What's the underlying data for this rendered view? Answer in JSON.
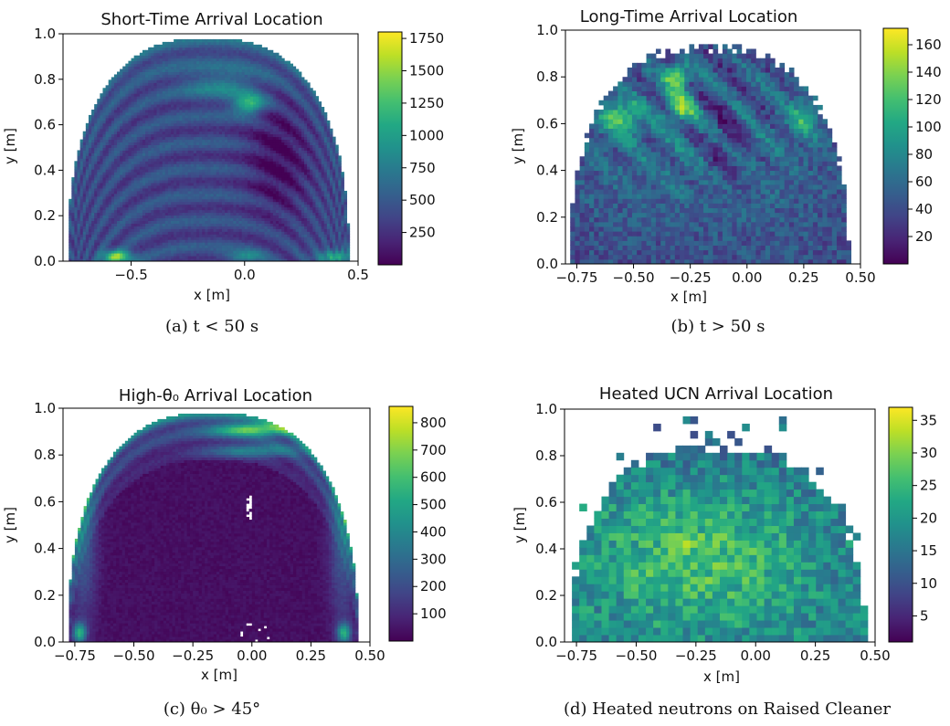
{
  "chart_data": [
    {
      "type": "heatmap",
      "title": "Short-Time Arrival Location",
      "caption": "(a) t < 50 s",
      "xlabel": "x [m]",
      "ylabel": "y [m]",
      "xlim": [
        -0.8,
        0.5
      ],
      "ylim": [
        0.0,
        1.0
      ],
      "xticks": [
        "-0.5",
        "0.0",
        "0.5"
      ],
      "xtick_values": [
        -0.5,
        0.0,
        0.5
      ],
      "yticks": [
        "0.0",
        "0.2",
        "0.4",
        "0.6",
        "0.8",
        "1.0"
      ],
      "ytick_values": [
        0.0,
        0.2,
        0.4,
        0.6,
        0.8,
        1.0
      ],
      "colorbar": {
        "min": 0,
        "max": 1800,
        "ticks": [
          250,
          500,
          750,
          1000,
          1250,
          1500,
          1750
        ],
        "tick_labels": [
          "250",
          "500",
          "750",
          "1000",
          "1250",
          "1500",
          "1750"
        ]
      },
      "colormap": "viridis",
      "grid": false,
      "region": {
        "x_left": -0.78,
        "x_right": 0.46,
        "y_top": 0.98,
        "shape": "arched dome"
      },
      "features": [
        {
          "x": -0.56,
          "y": 0.02,
          "value": 1750,
          "desc": "hot spot near floor"
        },
        {
          "x": 0.02,
          "y": 0.69,
          "value": 1300
        },
        {
          "x": 0.4,
          "y": 0.02,
          "value": 1300
        },
        {
          "x": -0.1,
          "y": 0.8,
          "value": 900
        },
        {
          "x": 0.0,
          "y": 0.02,
          "value": 900
        }
      ]
    },
    {
      "type": "heatmap",
      "title": "Long-Time Arrival Location",
      "caption": "(b) t > 50 s",
      "xlabel": "x [m]",
      "ylabel": "y [m]",
      "xlim": [
        -0.8,
        0.5
      ],
      "ylim": [
        0.0,
        1.0
      ],
      "xticks": [
        "-0.75",
        "-0.50",
        "-0.25",
        "0.00",
        "0.25",
        "0.50"
      ],
      "xtick_values": [
        -0.75,
        -0.5,
        -0.25,
        0.0,
        0.25,
        0.5
      ],
      "yticks": [
        "0.0",
        "0.2",
        "0.4",
        "0.6",
        "0.8",
        "1.0"
      ],
      "ytick_values": [
        0.0,
        0.2,
        0.4,
        0.6,
        0.8,
        1.0
      ],
      "colorbar": {
        "min": 0,
        "max": 172,
        "ticks": [
          20,
          40,
          60,
          80,
          100,
          120,
          140,
          160
        ],
        "tick_labels": [
          "20",
          "40",
          "60",
          "80",
          "100",
          "120",
          "140",
          "160"
        ]
      },
      "colormap": "viridis",
      "grid": false,
      "region": {
        "x_left": -0.78,
        "x_right": 0.45,
        "y_top": 0.94,
        "shape": "dome, top gaps"
      },
      "features": [
        {
          "x": -0.31,
          "y": 0.8,
          "value": 165
        },
        {
          "x": -0.29,
          "y": 0.67,
          "value": 150
        },
        {
          "x": -0.56,
          "y": 0.63,
          "value": 135
        },
        {
          "x": 0.25,
          "y": 0.63,
          "value": 110
        },
        {
          "x": 0.05,
          "y": 0.7,
          "value": 90
        }
      ]
    },
    {
      "type": "heatmap",
      "title": "High-θ₀ Arrival Location",
      "caption": "(c) θ₀ > 45°",
      "xlabel": "x [m]",
      "ylabel": "y [m]",
      "xlim": [
        -0.8,
        0.5
      ],
      "ylim": [
        0.0,
        1.0
      ],
      "xticks": [
        "-0.75",
        "-0.50",
        "-0.25",
        "0.00",
        "0.25",
        "0.50"
      ],
      "xtick_values": [
        -0.75,
        -0.5,
        -0.25,
        0.0,
        0.25,
        0.5
      ],
      "yticks": [
        "0.0",
        "0.2",
        "0.4",
        "0.6",
        "0.8",
        "1.0"
      ],
      "ytick_values": [
        0.0,
        0.2,
        0.4,
        0.6,
        0.8,
        1.0
      ],
      "colorbar": {
        "min": 0,
        "max": 860,
        "ticks": [
          100,
          200,
          300,
          400,
          500,
          600,
          700,
          800
        ],
        "tick_labels": [
          "100",
          "200",
          "300",
          "400",
          "500",
          "600",
          "700",
          "800"
        ]
      },
      "colormap": "viridis",
      "grid": false,
      "region": {
        "x_left": -0.78,
        "x_right": 0.45,
        "y_top": 0.98,
        "shape": "arched dome, bright rim"
      },
      "features": [
        {
          "x": 0.0,
          "y": 0.91,
          "value": 820
        },
        {
          "x": -0.73,
          "y": 0.04,
          "value": 800
        },
        {
          "x": 0.39,
          "y": 0.04,
          "value": 800
        },
        {
          "x": 0.0,
          "y": 0.82,
          "value": 600
        },
        {
          "x": -0.6,
          "y": 0.6,
          "value": 450
        },
        {
          "x": 0.35,
          "y": 0.55,
          "value": 420
        }
      ]
    },
    {
      "type": "heatmap",
      "title": "Heated UCN Arrival Location",
      "caption": "(d) Heated neutrons on Raised Cleaner",
      "xlabel": "x [m]",
      "ylabel": "y [m]",
      "xlim": [
        -0.8,
        0.5
      ],
      "ylim": [
        0.0,
        1.0
      ],
      "xticks": [
        "-0.75",
        "-0.50",
        "-0.25",
        "0.00",
        "0.25",
        "0.50"
      ],
      "xtick_values": [
        -0.75,
        -0.5,
        -0.25,
        0.0,
        0.25,
        0.5
      ],
      "yticks": [
        "0.0",
        "0.2",
        "0.4",
        "0.6",
        "0.8",
        "1.0"
      ],
      "ytick_values": [
        0.0,
        0.2,
        0.4,
        0.6,
        0.8,
        1.0
      ],
      "colorbar": {
        "min": 1,
        "max": 37,
        "ticks": [
          5,
          10,
          15,
          20,
          25,
          30,
          35
        ],
        "tick_labels": [
          "5",
          "10",
          "15",
          "20",
          "25",
          "30",
          "35"
        ]
      },
      "colormap": "viridis",
      "grid": false,
      "region": {
        "x_left": -0.78,
        "x_right": 0.46,
        "y_top": 0.86,
        "shape": "coarse dome, sparse top"
      },
      "features": [
        {
          "x": -0.3,
          "y": 0.44,
          "value": 35
        },
        {
          "x": -0.1,
          "y": 0.32,
          "value": 30
        },
        {
          "x": 0.1,
          "y": 0.5,
          "value": 28
        }
      ]
    }
  ]
}
